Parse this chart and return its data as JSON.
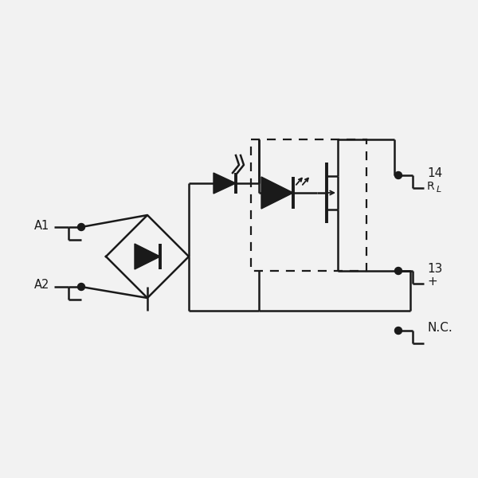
{
  "bg_color": "#f2f2f2",
  "line_color": "#1a1a1a",
  "lw": 1.8,
  "fig_size": [
    6.0,
    6.0
  ],
  "dpi": 100,
  "xlim": [
    0,
    600
  ],
  "ylim": [
    0,
    600
  ]
}
